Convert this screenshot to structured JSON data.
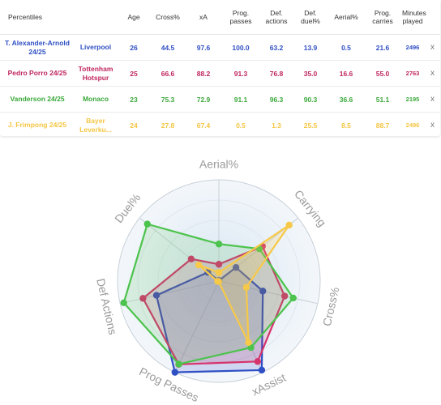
{
  "table": {
    "headers": [
      "Percentiles",
      "Age",
      "Cross%",
      "xA",
      "Prog. passes",
      "Def. actions",
      "Def. duel%",
      "Aerial%",
      "Prog. carries",
      "Minutes played",
      ""
    ],
    "remove_symbol": "x",
    "rows": [
      {
        "player": "T. Alexander-Arnold 24/25",
        "club": "Liverpool",
        "age": "26",
        "cross": "44.5",
        "xa": "97.6",
        "prog_passes": "100.0",
        "def_actions": "63.2",
        "def_duel": "13.9",
        "aerial": "0.5",
        "prog_carries": "21.6",
        "minutes": "2496",
        "color": "#2f4fc4"
      },
      {
        "player": "Pedro Porro 24/25",
        "club": "Tottenham Hotspur",
        "age": "25",
        "cross": "66.6",
        "xa": "88.2",
        "prog_passes": "91.3",
        "def_actions": "76.8",
        "def_duel": "35.0",
        "aerial": "16.6",
        "prog_carries": "55.0",
        "minutes": "2763",
        "color": "#c0265f"
      },
      {
        "player": "Vanderson 24/25",
        "club": "Monaco",
        "age": "23",
        "cross": "75.3",
        "xa": "72.9",
        "prog_passes": "91.1",
        "def_actions": "96.3",
        "def_duel": "90.3",
        "aerial": "36.6",
        "prog_carries": "51.1",
        "minutes": "2195",
        "color": "#3aa83a"
      },
      {
        "player": "J. Frimpong 24/25",
        "club": "Bayer Leverku...",
        "age": "24",
        "cross": "27.8",
        "xa": "67.4",
        "prog_passes": "0.5",
        "def_actions": "1.3",
        "def_duel": "25.5",
        "aerial": "8.5",
        "prog_carries": "88.7",
        "minutes": "2496",
        "color": "#f5c542"
      }
    ]
  },
  "chart_data": {
    "type": "radar",
    "axes": [
      "Aerial%",
      "Carrying",
      "Cross%",
      "xAssist",
      "Prog Passes",
      "Def Actions",
      "Duel%"
    ],
    "range": [
      0,
      100
    ],
    "series": [
      {
        "name": "T. Alexander-Arnold 24/25",
        "color": "#2f4fc4",
        "fill": "rgba(60,80,200,0.18)",
        "values": [
          0.5,
          21.6,
          44.5,
          97.6,
          100.0,
          63.2,
          13.9
        ]
      },
      {
        "name": "Pedro Porro 24/25",
        "color": "#d6336c",
        "fill": "rgba(200,40,90,0.16)",
        "values": [
          16.6,
          55.0,
          66.6,
          88.2,
          91.3,
          76.8,
          35.0
        ]
      },
      {
        "name": "Vanderson 24/25",
        "color": "#4cc34c",
        "fill": "rgba(80,190,80,0.16)",
        "values": [
          36.6,
          51.1,
          75.3,
          72.9,
          91.1,
          96.3,
          90.3
        ]
      },
      {
        "name": "J. Frimpong 24/25",
        "color": "#f7c948",
        "fill": "rgba(247,201,72,0.20)",
        "values": [
          8.5,
          88.7,
          27.8,
          67.4,
          0.5,
          1.3,
          25.5
        ]
      }
    ]
  }
}
